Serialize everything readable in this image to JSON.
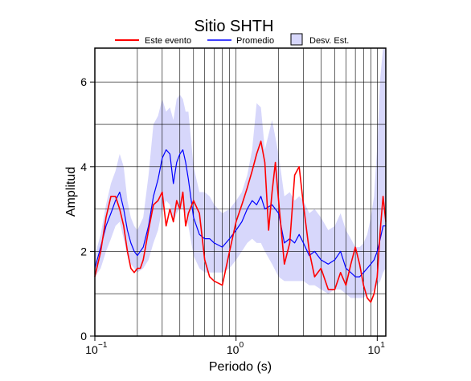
{
  "chart_data": {
    "type": "line",
    "title": "Sitio SHTH",
    "xlabel": "Periodo (s)",
    "ylabel": "Amplitud",
    "x_scale": "log",
    "xlim": [
      0.1,
      11.5
    ],
    "ylim": [
      0,
      6.8
    ],
    "x_ticks": [
      0.1,
      1,
      10
    ],
    "x_tick_labels": [
      "10",
      "10",
      "10"
    ],
    "x_tick_exponents": [
      "−1",
      "0",
      "1"
    ],
    "y_ticks": [
      0,
      2,
      4,
      6
    ],
    "y_tick_labels": [
      "0",
      "2",
      "4",
      "6"
    ],
    "grid": "vertical log grid and horizontal grid",
    "legend_position": "top",
    "colors": {
      "este_evento": "#ff0000",
      "promedio": "#0000ff",
      "desv_fill": "#d7d7fb",
      "grid": "#000000"
    },
    "series": [
      {
        "name": "Este evento",
        "x": [
          0.1,
          0.11,
          0.12,
          0.13,
          0.14,
          0.15,
          0.16,
          0.17,
          0.18,
          0.19,
          0.2,
          0.21,
          0.22,
          0.24,
          0.26,
          0.28,
          0.3,
          0.32,
          0.34,
          0.36,
          0.38,
          0.4,
          0.42,
          0.44,
          0.46,
          0.5,
          0.55,
          0.6,
          0.65,
          0.7,
          0.8,
          0.9,
          1.0,
          1.1,
          1.2,
          1.3,
          1.4,
          1.5,
          1.6,
          1.7,
          1.8,
          1.9,
          2.0,
          2.2,
          2.4,
          2.6,
          2.8,
          3.0,
          3.3,
          3.6,
          4.0,
          4.5,
          5.0,
          5.5,
          6.0,
          6.5,
          7.0,
          7.5,
          8.0,
          8.5,
          9.0,
          9.5,
          10.0,
          10.5,
          11.0,
          11.5
        ],
        "y": [
          1.4,
          2.0,
          2.8,
          3.3,
          3.3,
          3.0,
          2.6,
          2.0,
          1.6,
          1.5,
          1.6,
          1.6,
          1.8,
          2.5,
          3.1,
          3.2,
          3.4,
          2.6,
          3.0,
          2.7,
          3.2,
          3.0,
          3.4,
          2.6,
          2.9,
          3.2,
          2.9,
          1.8,
          1.4,
          1.3,
          1.2,
          2.0,
          2.7,
          3.1,
          3.5,
          3.9,
          4.3,
          4.6,
          4.1,
          2.5,
          3.4,
          4.1,
          3.2,
          1.7,
          2.2,
          3.8,
          4.0,
          3.1,
          2.0,
          1.4,
          1.6,
          1.1,
          1.1,
          1.5,
          1.2,
          1.7,
          2.1,
          1.7,
          1.2,
          0.9,
          0.8,
          1.0,
          1.4,
          2.5,
          3.3,
          2.7
        ]
      },
      {
        "name": "Promedio",
        "x": [
          0.1,
          0.11,
          0.12,
          0.13,
          0.14,
          0.15,
          0.16,
          0.17,
          0.18,
          0.19,
          0.2,
          0.22,
          0.24,
          0.26,
          0.28,
          0.3,
          0.32,
          0.34,
          0.36,
          0.38,
          0.4,
          0.42,
          0.44,
          0.46,
          0.5,
          0.55,
          0.6,
          0.65,
          0.7,
          0.8,
          0.9,
          1.0,
          1.1,
          1.2,
          1.3,
          1.4,
          1.5,
          1.6,
          1.8,
          2.0,
          2.2,
          2.4,
          2.6,
          2.8,
          3.0,
          3.3,
          3.6,
          4.0,
          4.5,
          5.0,
          5.5,
          6.0,
          6.5,
          7.0,
          7.5,
          8.0,
          8.5,
          9.0,
          9.5,
          10.0,
          10.5,
          11.0,
          11.5
        ],
        "y": [
          1.6,
          2.1,
          2.6,
          2.9,
          3.2,
          3.4,
          3.0,
          2.5,
          2.2,
          2.0,
          1.9,
          2.1,
          2.6,
          3.3,
          3.7,
          4.2,
          4.4,
          4.3,
          3.6,
          4.1,
          4.3,
          4.4,
          4.1,
          3.7,
          2.8,
          2.4,
          2.3,
          2.3,
          2.2,
          2.1,
          2.3,
          2.5,
          2.7,
          3.0,
          3.2,
          3.1,
          3.3,
          3.0,
          3.1,
          2.9,
          2.2,
          2.3,
          2.2,
          2.4,
          2.2,
          1.9,
          2.0,
          1.8,
          1.7,
          1.8,
          2.0,
          1.6,
          1.5,
          1.4,
          1.4,
          1.5,
          1.6,
          1.7,
          1.8,
          2.0,
          2.3,
          2.6,
          2.6
        ]
      }
    ],
    "band": {
      "name": "Desv. Est.",
      "x": [
        0.1,
        0.11,
        0.12,
        0.13,
        0.14,
        0.15,
        0.16,
        0.17,
        0.18,
        0.19,
        0.2,
        0.22,
        0.24,
        0.26,
        0.28,
        0.3,
        0.32,
        0.34,
        0.36,
        0.38,
        0.4,
        0.42,
        0.44,
        0.46,
        0.5,
        0.55,
        0.6,
        0.65,
        0.7,
        0.8,
        0.9,
        1.0,
        1.1,
        1.2,
        1.3,
        1.4,
        1.5,
        1.6,
        1.8,
        2.0,
        2.2,
        2.4,
        2.6,
        2.8,
        3.0,
        3.3,
        3.6,
        4.0,
        4.5,
        5.0,
        5.5,
        6.0,
        6.5,
        7.0,
        7.5,
        8.0,
        8.5,
        9.0,
        9.5,
        10.0,
        10.5,
        11.0,
        11.5
      ],
      "upper": [
        1.9,
        2.4,
        3.1,
        3.6,
        3.9,
        4.3,
        4.0,
        3.2,
        2.8,
        2.6,
        2.5,
        2.8,
        3.8,
        5.0,
        5.2,
        5.6,
        5.3,
        5.4,
        5.1,
        5.6,
        5.7,
        5.6,
        5.3,
        5.3,
        4.0,
        3.4,
        3.4,
        3.3,
        3.1,
        2.9,
        3.0,
        3.2,
        3.4,
        3.8,
        4.4,
        5.5,
        5.4,
        4.4,
        5.1,
        4.3,
        3.3,
        3.4,
        3.2,
        3.3,
        3.2,
        2.9,
        3.0,
        2.8,
        2.5,
        2.6,
        2.9,
        2.5,
        2.3,
        2.1,
        2.1,
        2.2,
        2.4,
        2.8,
        3.3,
        4.5,
        6.1,
        6.8,
        6.8
      ],
      "lower": [
        1.4,
        1.6,
        2.0,
        2.3,
        2.6,
        2.7,
        2.3,
        1.9,
        1.7,
        1.6,
        1.5,
        1.6,
        1.8,
        2.2,
        2.5,
        3.0,
        3.2,
        3.1,
        2.7,
        2.9,
        3.0,
        3.0,
        2.9,
        2.6,
        1.9,
        1.6,
        1.5,
        1.5,
        1.5,
        1.5,
        1.6,
        1.8,
        2.0,
        2.2,
        2.3,
        2.2,
        2.2,
        2.0,
        1.7,
        1.4,
        1.3,
        1.3,
        1.3,
        1.3,
        1.3,
        1.2,
        1.2,
        1.1,
        1.0,
        1.1,
        1.1,
        1.0,
        0.9,
        0.9,
        0.9,
        0.9,
        1.0,
        1.0,
        1.1,
        1.2,
        1.3,
        1.5,
        1.6
      ]
    }
  }
}
